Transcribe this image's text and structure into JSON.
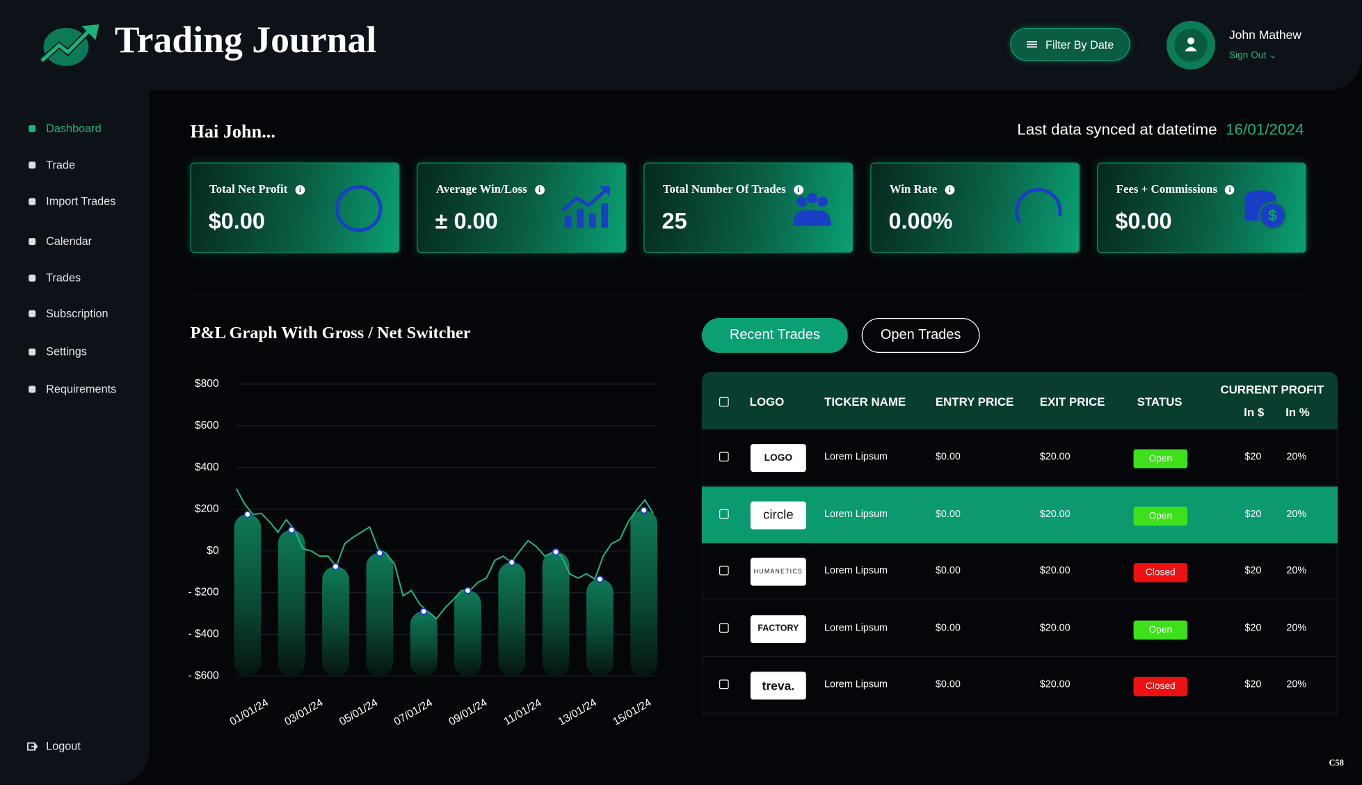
{
  "header": {
    "title": "Trading Journal",
    "filter_button": "Filter By Date",
    "user_name": "John Mathew",
    "sign_out": "Sign Out"
  },
  "sidebar": {
    "items": [
      "Dashboard",
      "Trade",
      "Import Trades",
      "Calendar",
      "Trades",
      "Subscription",
      "Settings",
      "Requirements"
    ],
    "logout": "Logout"
  },
  "greeting": "Hai John...",
  "sync": {
    "label": "Last data synced at datetime",
    "date": "16/01/2024"
  },
  "cards": [
    {
      "title": "Total Net Profit",
      "value": "$0.00"
    },
    {
      "title": "Average Win/Loss",
      "value": "± 0.00"
    },
    {
      "title": "Total Number Of Trades",
      "value": "25"
    },
    {
      "title": "Win Rate",
      "value": "0.00%"
    },
    {
      "title": "Fees + Commissions",
      "value": "$0.00"
    }
  ],
  "chart_data": {
    "type": "bar",
    "title": "P&L Graph With Gross / Net Switcher",
    "categories": [
      null,
      null,
      null,
      null,
      null,
      null,
      null,
      null,
      null,
      null
    ],
    "values": [
      175,
      100,
      -75,
      -10,
      -290,
      -190,
      -55,
      -5,
      -135,
      195
    ],
    "color": "#0e7a57",
    "line": {
      "color": "#22b77f",
      "values": [
        300,
        225,
        175,
        180,
        140,
        90,
        150,
        100,
        10,
        0,
        -25,
        -25,
        -75,
        35,
        65,
        90,
        115,
        10,
        -12,
        -65,
        -215,
        -190,
        -255,
        -290,
        -325,
        -275,
        -235,
        -190,
        -190,
        -150,
        -130,
        -45,
        -25,
        -55,
        0,
        50,
        20,
        -25,
        -5,
        -25,
        -110,
        -130,
        -110,
        -135,
        -25,
        35,
        55,
        140,
        195,
        245,
        180
      ]
    },
    "x_labels": [
      "01/01/24",
      "03/01/24",
      "05/01/24",
      "07/01/24",
      "09/01/24",
      "11/01/24",
      "13/01/24",
      "15/01/24"
    ],
    "ylim": [
      -600,
      800
    ],
    "yticks": [
      {
        "value": 800,
        "label": "$800"
      },
      {
        "value": 600,
        "label": "$600"
      },
      {
        "value": 400,
        "label": "$400"
      },
      {
        "value": 200,
        "label": "$200"
      },
      {
        "value": 0,
        "label": "$0"
      },
      {
        "value": -200,
        "label": "- $200"
      },
      {
        "value": -400,
        "label": "- $400"
      },
      {
        "value": -600,
        "label": "- $600"
      }
    ],
    "grid": true
  },
  "tabs": [
    "Recent Trades",
    "Open Trades"
  ],
  "table": {
    "headers": [
      "LOGO",
      "TICKER NAME",
      "ENTRY PRICE",
      "EXIT PRICE",
      "STATUS",
      "CURRENT PROFIT"
    ],
    "subheaders": [
      "In $",
      "In %"
    ],
    "rows": [
      [
        "LOGO",
        "Lorem Lipsum",
        "$0.00",
        "$20.00",
        "Open",
        "$20",
        "20%"
      ],
      [
        "circle",
        "Lorem Lipsum",
        "$0.00",
        "$20.00",
        "Open",
        "$20",
        "20%"
      ],
      [
        "HUMANETICS",
        "Lorem Lipsum",
        "$0.00",
        "$20.00",
        "Closed",
        "$20",
        "20%"
      ],
      [
        "FACTORY",
        "Lorem Lipsum",
        "$0.00",
        "$20.00",
        "Open",
        "$20",
        "20%"
      ],
      [
        "treva.",
        "Lorem Lipsum",
        "$0.00",
        "$20.00",
        "Closed",
        "$20",
        "20%"
      ]
    ]
  },
  "footer_code": "C58"
}
